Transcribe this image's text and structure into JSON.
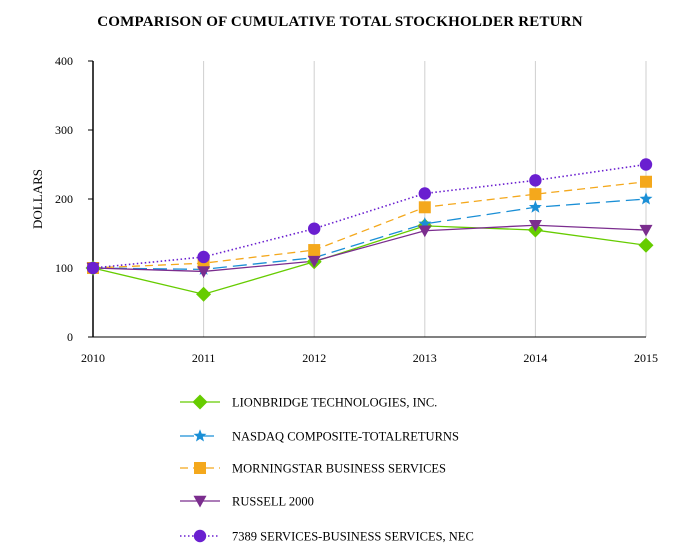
{
  "chart_data": {
    "type": "line",
    "title": "COMPARISON OF CUMULATIVE TOTAL STOCKHOLDER RETURN",
    "xlabel": "",
    "ylabel": "DOLLARS",
    "x": [
      "2010",
      "2011",
      "2012",
      "2013",
      "2014",
      "2015"
    ],
    "ylim": [
      0,
      400
    ],
    "yticks": [
      0,
      100,
      200,
      300,
      400
    ],
    "grid": "vertical",
    "series": [
      {
        "name": "LIONBRIDGE TECHNOLOGIES, INC.",
        "color": "#66cc00",
        "dash": "solid",
        "marker": "diamond",
        "values": [
          100,
          62,
          109,
          161,
          155,
          133
        ]
      },
      {
        "name": "NASDAQ COMPOSITE-TOTALRETURNS",
        "color": "#1a8fd6",
        "dash": "long-dash",
        "marker": "star",
        "values": [
          100,
          98,
          115,
          164,
          188,
          200
        ]
      },
      {
        "name": "MORNINGSTAR BUSINESS SERVICES",
        "color": "#f4a81c",
        "dash": "dash",
        "marker": "square",
        "values": [
          100,
          107,
          126,
          188,
          207,
          225
        ]
      },
      {
        "name": "RUSSELL 2000",
        "color": "#7b2d8e",
        "dash": "solid",
        "marker": "triangle-down",
        "values": [
          100,
          95,
          110,
          154,
          162,
          155
        ]
      },
      {
        "name": "7389 SERVICES-BUSINESS SERVICES, NEC",
        "color": "#6a1fd0",
        "dash": "dotted",
        "marker": "circle",
        "values": [
          100,
          116,
          157,
          208,
          227,
          250
        ]
      }
    ]
  }
}
